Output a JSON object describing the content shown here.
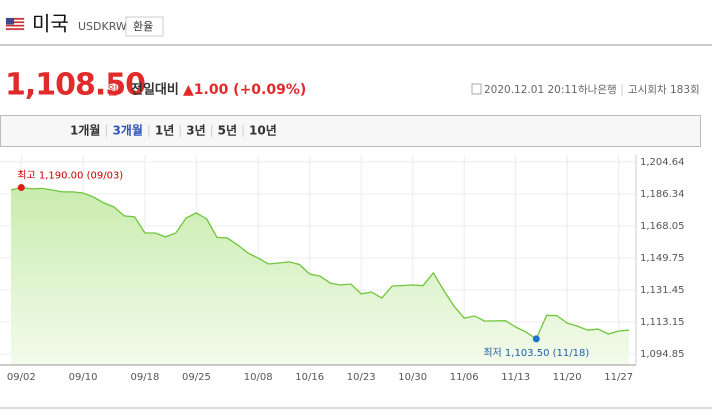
{
  "header": {
    "title": "미국",
    "code": "USDKRW",
    "button": "환율"
  },
  "quote": {
    "price": "1,108.50",
    "unit": "원",
    "change_label": "전일대비",
    "change": "▲1.00 (+0.09%)",
    "timestamp": "2020.12.01 20:11",
    "bank": "하나은행",
    "round": "고시회차 183회"
  },
  "tabs": {
    "items": [
      "1개월",
      "3개월",
      "1년",
      "3년",
      "5년",
      "10년"
    ],
    "active": 1
  },
  "chart_data": {
    "type": "area",
    "color": "#6fc63a",
    "grid": true,
    "annotations": {
      "max": "최고 1,190.00 (09/03)",
      "min": "최저 1,103.50 (11/18)"
    },
    "ylim": [
      1088.6,
      1208.6
    ],
    "yticks": [
      {
        "value": 1204.64,
        "label": "1,204.64"
      },
      {
        "value": 1186.34,
        "label": "1,186.34"
      },
      {
        "value": 1168.05,
        "label": "1,168.05"
      },
      {
        "value": 1149.75,
        "label": "1,149.75"
      },
      {
        "value": 1131.45,
        "label": "1,131.45"
      },
      {
        "value": 1113.15,
        "label": "1,113.15"
      },
      {
        "value": 1094.85,
        "label": "1,094.85"
      }
    ],
    "categories": [
      null,
      "09/02",
      null,
      null,
      null,
      null,
      null,
      "09/10",
      null,
      null,
      null,
      null,
      null,
      "09/18",
      null,
      null,
      null,
      null,
      "09/25",
      null,
      null,
      null,
      null,
      null,
      "10/08",
      null,
      null,
      null,
      null,
      "10/16",
      null,
      null,
      null,
      null,
      "10/23",
      null,
      null,
      null,
      null,
      "10/30",
      null,
      null,
      null,
      null,
      "11/06",
      null,
      null,
      null,
      null,
      "11/13",
      null,
      null,
      null,
      null,
      "11/20",
      null,
      null,
      null,
      null,
      "11/27",
      null
    ],
    "values": [
      1188.6,
      1190.0,
      1189.2,
      1189.5,
      1188.6,
      1187.5,
      1187.5,
      1186.9,
      1184.6,
      1181.2,
      1178.9,
      1173.8,
      1173.2,
      1164.0,
      1164.0,
      1161.8,
      1164.0,
      1172.6,
      1175.5,
      1172.0,
      1161.5,
      1161.2,
      1157.2,
      1152.6,
      1149.7,
      1146.3,
      1146.9,
      1147.5,
      1146.0,
      1140.6,
      1139.4,
      1135.4,
      1134.3,
      1134.9,
      1129.2,
      1130.3,
      1126.9,
      1133.7,
      1134.0,
      1134.3,
      1133.9,
      1141.2,
      1131.4,
      1122.3,
      1115.4,
      1116.6,
      1113.7,
      1113.8,
      1113.9,
      1110.3,
      1107.4,
      1103.5,
      1117.0,
      1116.8,
      1112.5,
      1110.8,
      1108.5,
      1109.1,
      1106.3,
      1108.0,
      1108.5
    ]
  }
}
